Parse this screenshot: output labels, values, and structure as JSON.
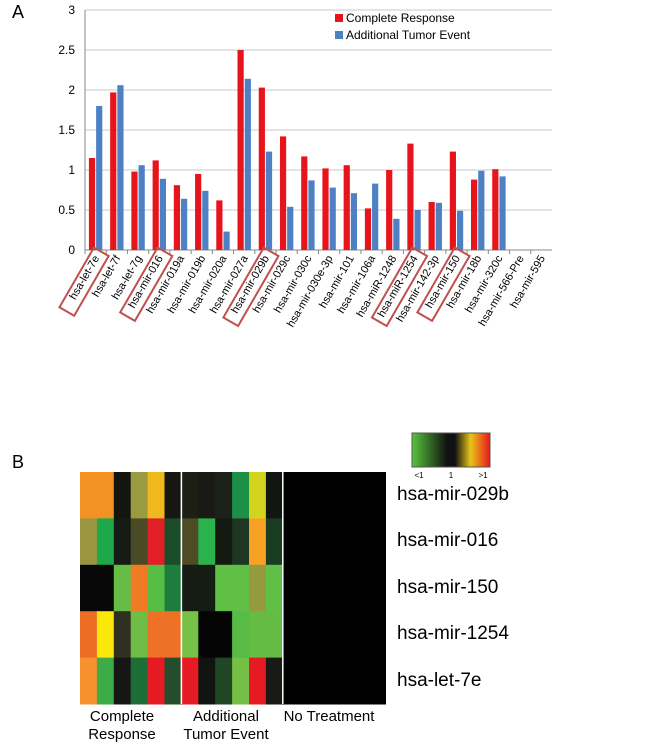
{
  "panels": {
    "a_label": "A",
    "b_label": "B"
  },
  "chart_data": [
    {
      "type": "bar",
      "categories": [
        "hsa-let-7e",
        "hsa-let-7f",
        "hsa-let-7g",
        "hsa-mir-016",
        "hsa-mir-019a",
        "hsa-mir-019b",
        "hsa-mir-020a",
        "hsa-mir-027a",
        "hsa-mir-029b",
        "hsa-mir-029c",
        "hsa-mir-030c",
        "hsa-mir-030e-3p",
        "hsa-mir-101",
        "hsa-mir-106a",
        "hsa-miR-1248",
        "hsa-miR-1254",
        "hsa-mir-142-3p",
        "hsa-mir-150",
        "hsa-mir-18b",
        "hsa-mir-320c",
        "hsa-mir-566-Pre",
        "hsa-mir-595"
      ],
      "series": [
        {
          "name": "Complete Response",
          "color": "#e8141c",
          "values": [
            1.15,
            1.97,
            0.98,
            1.12,
            0.81,
            0.95,
            0.62,
            2.5,
            2.03,
            1.42,
            1.17,
            1.02,
            1.06,
            0.52,
            1.0,
            1.33,
            0.6,
            1.23,
            0.88,
            1.01,
            0,
            0
          ]
        },
        {
          "name": "Additional Tumor Event",
          "color": "#4d81c4",
          "values": [
            1.8,
            2.06,
            1.06,
            0.89,
            0.64,
            0.74,
            0.23,
            2.14,
            1.23,
            0.54,
            0.87,
            0.78,
            0.71,
            0.83,
            0.39,
            0.5,
            0.59,
            0.49,
            0.99,
            0.92,
            0,
            0
          ]
        }
      ],
      "ylim": [
        0,
        3
      ],
      "yticks": [
        "0",
        "0.5",
        "1",
        "1.5",
        "2",
        "2.5",
        "3"
      ],
      "grid": true,
      "legend_position": "top-right",
      "highlighted": [
        "hsa-let-7e",
        "hsa-mir-016",
        "hsa-mir-029b",
        "hsa-miR-1254",
        "hsa-mir-150"
      ],
      "highlight_color": "#c0504d"
    },
    {
      "type": "heatmap",
      "rows": [
        "hsa-mir-029b",
        "hsa-mir-016",
        "hsa-mir-150",
        "hsa-miR-1254",
        "hsa-let-7e"
      ],
      "row_labels": [
        "hsa-mir-029b",
        "hsa-mir-016",
        "hsa-mir-150",
        "hsa-mir-1254",
        "hsa-let-7e"
      ],
      "groups": [
        {
          "label_lines": [
            "Complete",
            "Response"
          ],
          "columns": 6
        },
        {
          "label_lines": [
            "Additional",
            "Tumor Event"
          ],
          "columns": 6
        },
        {
          "label_lines": [
            "No Treatment"
          ],
          "columns": 1
        }
      ],
      "color_scale": {
        "low_label": "<1",
        "mid_label": "1",
        "high_label": ">1",
        "low_color": "#58c53c",
        "mid_color": "#111111",
        "high_color": "#e8191c"
      },
      "cells": [
        [
          "#f29222",
          "#f29222",
          "#15150f",
          "#9a9a40",
          "#efb81d",
          "#161612",
          "#1e1e14",
          "#1a1a14",
          "#1c2218",
          "#1d9048",
          "#d3d41e",
          "#111611",
          "#000000"
        ],
        [
          "#9a9640",
          "#1fa84a",
          "#151a14",
          "#4a4a27",
          "#e01f27",
          "#1b4d28",
          "#4d4c25",
          "#2ab34c",
          "#121a12",
          "#1e3622",
          "#f8a224",
          "#193c23",
          "#000000"
        ],
        [
          "#080808",
          "#080808",
          "#65bd46",
          "#ef7b25",
          "#56be45",
          "#1c7d3c",
          "#151c13",
          "#151c13",
          "#60c046",
          "#60c046",
          "#969a3e",
          "#60c046",
          "#000000"
        ],
        [
          "#ee6d24",
          "#fce70a",
          "#2f3020",
          "#6fbd46",
          "#ef7125",
          "#ef7125",
          "#77c149",
          "#050505",
          "#050505",
          "#58bb45",
          "#65bc45",
          "#65bc45",
          "#000000"
        ],
        [
          "#f5922f",
          "#3dab48",
          "#161714",
          "#1b6e35",
          "#e61a22",
          "#254d2b",
          "#e61a22",
          "#111411",
          "#1f4724",
          "#75bf46",
          "#e51a22",
          "#171a15",
          "#000000"
        ]
      ]
    }
  ]
}
